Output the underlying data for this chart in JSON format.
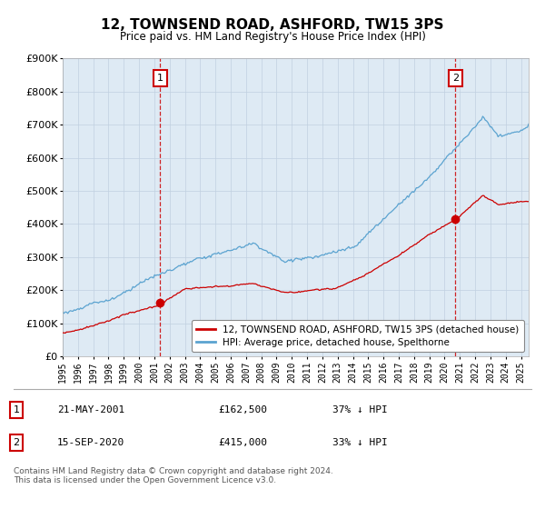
{
  "title": "12, TOWNSEND ROAD, ASHFORD, TW15 3PS",
  "subtitle": "Price paid vs. HM Land Registry's House Price Index (HPI)",
  "ylim": [
    0,
    900000
  ],
  "xlim_start": 1995.0,
  "xlim_end": 2025.5,
  "hpi_color": "#5ba3d0",
  "price_color": "#cc0000",
  "marker_color": "#cc0000",
  "plot_bg_color": "#deeaf4",
  "purchase1_x": 2001.38,
  "purchase1_y": 162500,
  "purchase1_label": "1",
  "purchase2_x": 2020.71,
  "purchase2_y": 415000,
  "purchase2_label": "2",
  "legend_line1": "12, TOWNSEND ROAD, ASHFORD, TW15 3PS (detached house)",
  "legend_line2": "HPI: Average price, detached house, Spelthorne",
  "annot1_num": "1",
  "annot1_date": "21-MAY-2001",
  "annot1_price": "£162,500",
  "annot1_hpi": "37% ↓ HPI",
  "annot2_num": "2",
  "annot2_date": "15-SEP-2020",
  "annot2_price": "£415,000",
  "annot2_hpi": "33% ↓ HPI",
  "footer": "Contains HM Land Registry data © Crown copyright and database right 2024.\nThis data is licensed under the Open Government Licence v3.0.",
  "background_color": "#ffffff",
  "grid_color": "#c0d0e0"
}
